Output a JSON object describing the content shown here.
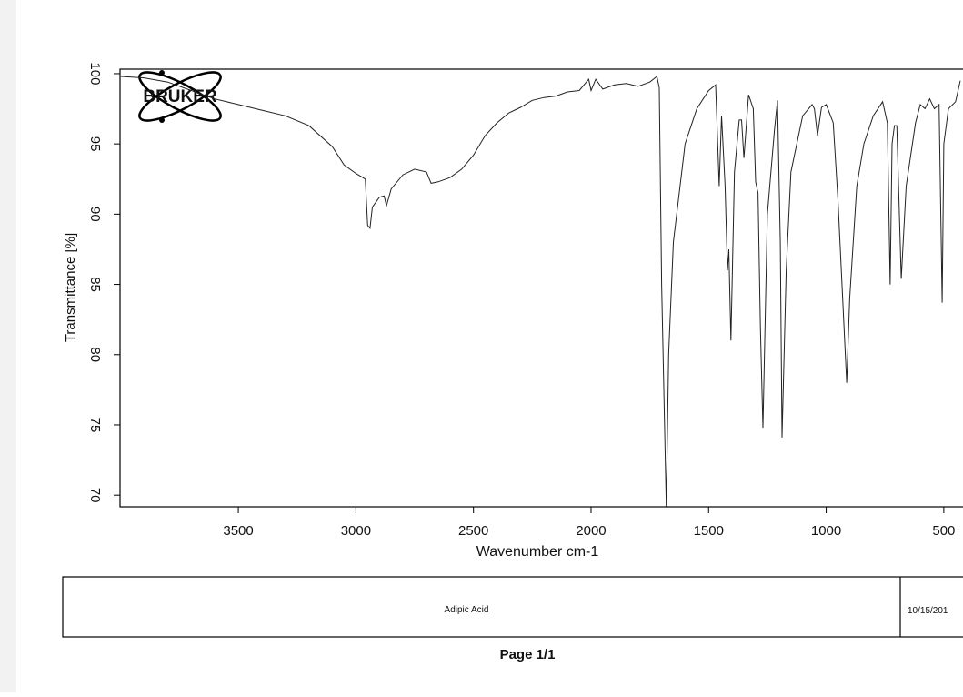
{
  "chart_data": {
    "type": "line",
    "y_label": "Transmittance [%]",
    "x_label": "Wavenumber cm-1",
    "xlim": [
      4003,
      400
    ],
    "ylim": [
      69.17,
      100.32
    ],
    "xticks": [
      3500,
      3000,
      2500,
      2000,
      1500,
      1000,
      500
    ],
    "yticks": [
      70,
      75,
      80,
      85,
      90,
      95,
      100
    ],
    "series": [
      {
        "color": "#222222",
        "x": [
          4000,
          3900,
          3800,
          3700,
          3600,
          3500,
          3400,
          3300,
          3200,
          3100,
          3050,
          3000,
          2960,
          2950,
          2940,
          2930,
          2900,
          2880,
          2870,
          2850,
          2800,
          2750,
          2700,
          2680,
          2650,
          2600,
          2550,
          2500,
          2450,
          2400,
          2350,
          2300,
          2250,
          2200,
          2150,
          2100,
          2050,
          2010,
          2000,
          1980,
          1950,
          1900,
          1850,
          1800,
          1750,
          1720,
          1710,
          1700,
          1680,
          1670,
          1650,
          1600,
          1550,
          1500,
          1470,
          1455,
          1445,
          1430,
          1420,
          1414,
          1405,
          1390,
          1370,
          1360,
          1350,
          1330,
          1310,
          1300,
          1290,
          1280,
          1269,
          1250,
          1220,
          1207,
          1195,
          1188,
          1170,
          1150,
          1100,
          1060,
          1050,
          1037,
          1020,
          1000,
          970,
          950,
          913,
          900,
          870,
          840,
          800,
          760,
          740,
          728,
          720,
          710,
          700,
          681,
          660,
          620,
          600,
          580,
          560,
          540,
          520,
          507,
          500,
          480,
          450,
          430
        ],
        "values": [
          99.8,
          99.7,
          99.4,
          98.8,
          98.2,
          97.8,
          97.4,
          97.0,
          96.3,
          94.8,
          93.5,
          92.9,
          92.5,
          89.2,
          89.0,
          90.5,
          91.2,
          91.3,
          90.6,
          91.8,
          92.8,
          93.2,
          93.0,
          92.2,
          92.3,
          92.6,
          93.2,
          94.2,
          95.6,
          96.5,
          97.2,
          97.6,
          98.1,
          98.3,
          98.4,
          98.7,
          98.8,
          99.6,
          98.8,
          99.6,
          98.9,
          99.2,
          99.3,
          99.1,
          99.4,
          99.8,
          99.0,
          85,
          69.2,
          80,
          88,
          95,
          97.5,
          98.8,
          99.2,
          92,
          97,
          92,
          86,
          87.5,
          81,
          93,
          96.7,
          96.7,
          94,
          98.5,
          97.5,
          92.3,
          91.5,
          82,
          74.8,
          90,
          96,
          98.1,
          88,
          74.1,
          86,
          93,
          97,
          97.8,
          97.5,
          95.6,
          97.6,
          97.8,
          96.5,
          91,
          78.0,
          84,
          92,
          95,
          97,
          98,
          96.5,
          85,
          95,
          96.3,
          96.3,
          85.4,
          92,
          96.5,
          97.8,
          97.5,
          98.2,
          97.5,
          97.8,
          83.7,
          95,
          97.5,
          98,
          99.5
        ]
      }
    ]
  },
  "logo": "BRUKER",
  "footer": {
    "sample": "Adipic Acid",
    "date": "10/15/201",
    "page": "Page 1/1"
  }
}
